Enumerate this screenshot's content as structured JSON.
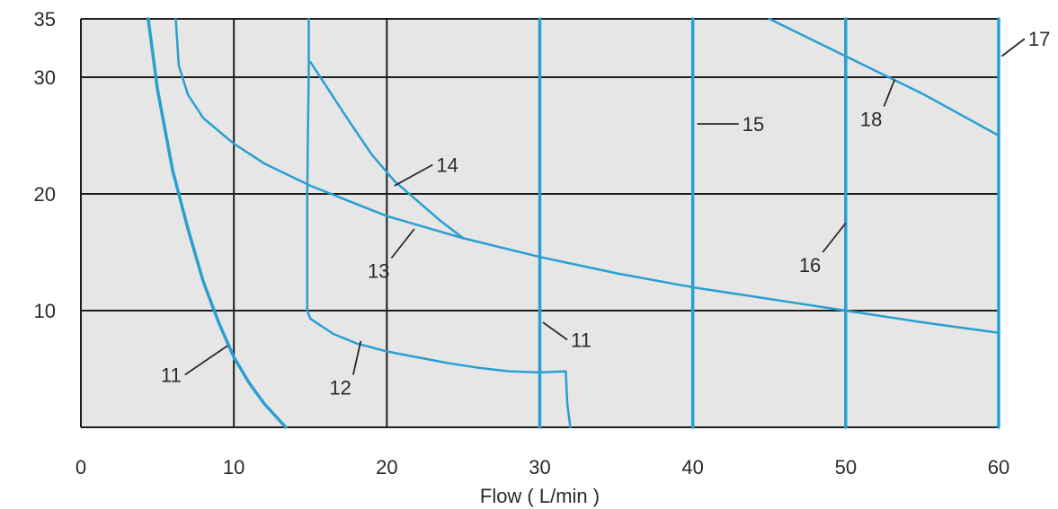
{
  "chart_data": {
    "type": "line",
    "title": "",
    "xlabel": "Flow ( L/min )",
    "ylabel": "",
    "xlim": [
      0,
      60
    ],
    "ylim": [
      0,
      35
    ],
    "x_ticks": [
      "0",
      "10",
      "20",
      "30",
      "40",
      "50",
      "60"
    ],
    "y_ticks": [
      "10",
      "20",
      "30",
      "35"
    ],
    "x_tick_values": [
      0,
      10,
      20,
      30,
      40,
      50,
      60
    ],
    "y_tick_values": [
      10,
      20,
      30,
      35
    ],
    "grid": true,
    "colors": {
      "series": "#2a9fd0",
      "grid": "#1e1e1e",
      "plot_bg": "#e6e6e6"
    },
    "series": [
      {
        "label": "11",
        "x": [
          4.4,
          5.0,
          6.0,
          7.0,
          8.0,
          9.0,
          10.0,
          11.0,
          12.0,
          13.4
        ],
        "y": [
          35.0,
          29.0,
          22.0,
          17.0,
          12.5,
          9.0,
          6.0,
          3.8,
          2.0,
          0.0
        ]
      },
      {
        "label": "12",
        "x": [
          14.9,
          14.9,
          14.8,
          14.8,
          15.0,
          16.5,
          18.0,
          20.0,
          22.0,
          24.0,
          26.0,
          28.0,
          30.0,
          31.7,
          31.8,
          32.0
        ],
        "y": [
          35.0,
          31.0,
          20.0,
          10.0,
          9.3,
          8.0,
          7.2,
          6.5,
          6.0,
          5.5,
          5.1,
          4.8,
          4.7,
          4.8,
          2.0,
          0.0
        ]
      },
      {
        "label": "13",
        "x": [
          6.2,
          6.4,
          7.0,
          8.0,
          10.0,
          12.0,
          15.0,
          20.0,
          25.0,
          30.0,
          35.0,
          40.0,
          45.0,
          50.0,
          55.0,
          60.0
        ],
        "y": [
          35.0,
          31.0,
          28.5,
          26.5,
          24.3,
          22.6,
          20.7,
          18.1,
          16.2,
          14.6,
          13.2,
          12.0,
          11.0,
          10.0,
          9.0,
          8.1
        ]
      },
      {
        "label": "14",
        "x": [
          15.0,
          16.0,
          17.5,
          19.0,
          20.5,
          22.0,
          23.5,
          25.0
        ],
        "y": [
          31.3,
          29.3,
          26.3,
          23.4,
          21.1,
          19.4,
          17.7,
          16.2
        ]
      },
      {
        "label": "11",
        "x": [
          30,
          30
        ],
        "y": [
          0,
          35
        ]
      },
      {
        "label": "15",
        "x": [
          40,
          40
        ],
        "y": [
          0,
          35
        ]
      },
      {
        "label": "16",
        "x": [
          50,
          50
        ],
        "y": [
          0,
          35
        ]
      },
      {
        "label": "17",
        "x": [
          60,
          60
        ],
        "y": [
          0,
          35
        ]
      },
      {
        "label": "18",
        "x": [
          45.0,
          50.0,
          55.0,
          60.0
        ],
        "y": [
          35.0,
          31.8,
          28.6,
          25.0
        ]
      }
    ],
    "callouts": [
      {
        "text": "11",
        "from": [
          6.8,
          4.5
        ],
        "to": [
          9.6,
          7.0
        ]
      },
      {
        "text": "12",
        "from": [
          17.8,
          4.5
        ],
        "to": [
          18.3,
          7.4
        ]
      },
      {
        "text": "13",
        "from": [
          20.3,
          14.5
        ],
        "to": [
          21.8,
          17.0
        ]
      },
      {
        "text": "14",
        "from": [
          23.0,
          22.5
        ],
        "to": [
          20.5,
          20.7
        ]
      },
      {
        "text": "11",
        "from": [
          31.8,
          7.5
        ],
        "to": [
          30.2,
          9.0
        ]
      },
      {
        "text": "15",
        "from": [
          43.0,
          26.0
        ],
        "to": [
          40.3,
          26.0
        ]
      },
      {
        "text": "16",
        "from": [
          48.5,
          15.0
        ],
        "to": [
          50.0,
          17.5
        ]
      },
      {
        "text": "18",
        "from": [
          52.5,
          27.5
        ],
        "to": [
          53.2,
          29.8
        ]
      },
      {
        "text": "17",
        "from": [
          61.7,
          33.3
        ],
        "to": [
          60.2,
          31.8
        ]
      }
    ]
  }
}
